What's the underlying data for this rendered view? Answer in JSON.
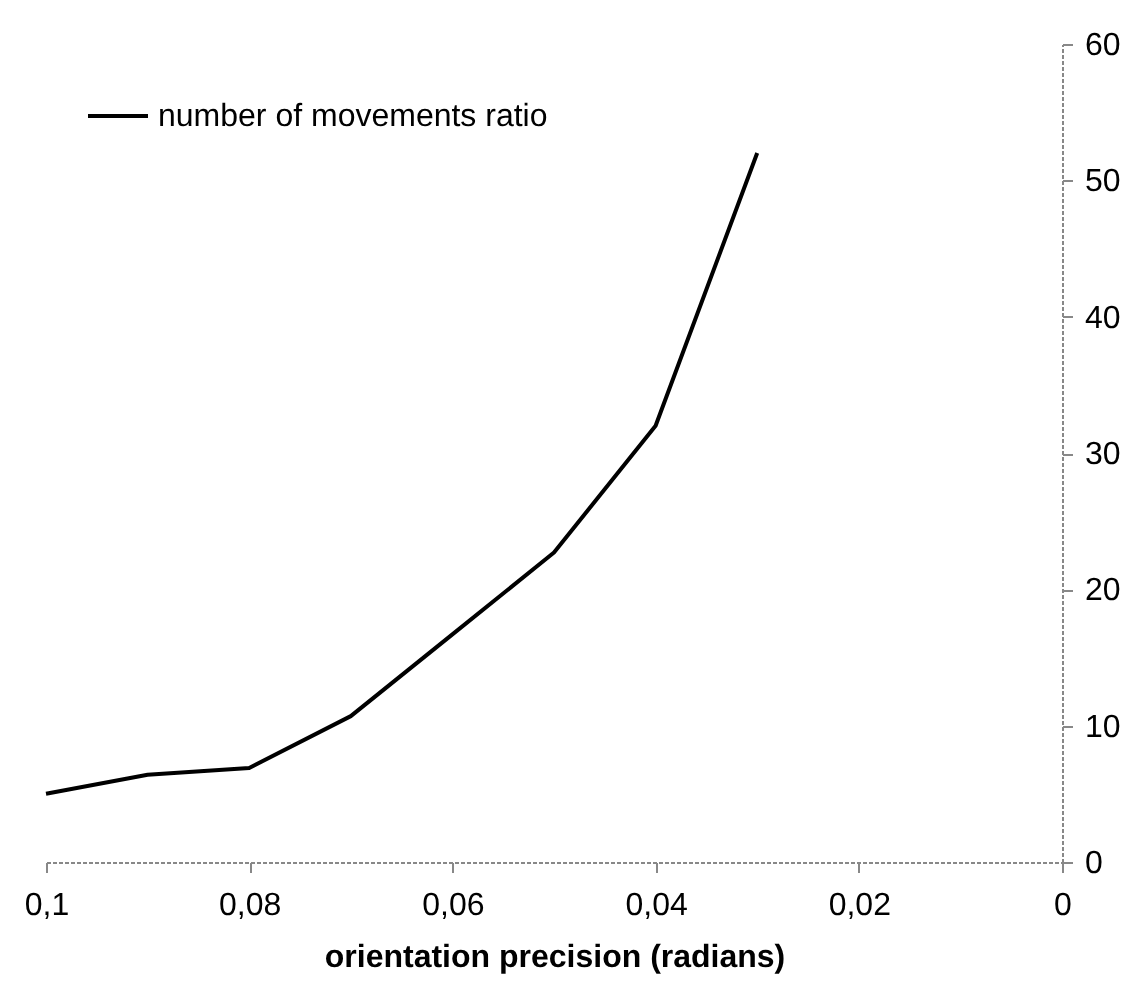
{
  "chart_data": {
    "type": "line",
    "xlabel": "orientation precision (radians)",
    "x": [
      0.1,
      0.09,
      0.08,
      0.07,
      0.06,
      0.05,
      0.04,
      0.03
    ],
    "series": [
      {
        "name": "number of movements ratio",
        "color": "#000000",
        "values": [
          5.0,
          6.4,
          6.9,
          10.7,
          16.7,
          22.7,
          32,
          52
        ]
      }
    ],
    "xlim": [
      0.1,
      0
    ],
    "xticks": [
      {
        "value": 0.1,
        "label": "0,1"
      },
      {
        "value": 0.08,
        "label": "0,08"
      },
      {
        "value": 0.06,
        "label": "0,06"
      },
      {
        "value": 0.04,
        "label": "0,04"
      },
      {
        "value": 0.02,
        "label": "0,02"
      },
      0
    ],
    "ylim": [
      0,
      60
    ],
    "yticks": [
      0,
      10,
      20,
      30,
      40,
      50,
      60
    ],
    "grid": false,
    "legend": "top left",
    "marker": "none",
    "line_style": "solid"
  }
}
